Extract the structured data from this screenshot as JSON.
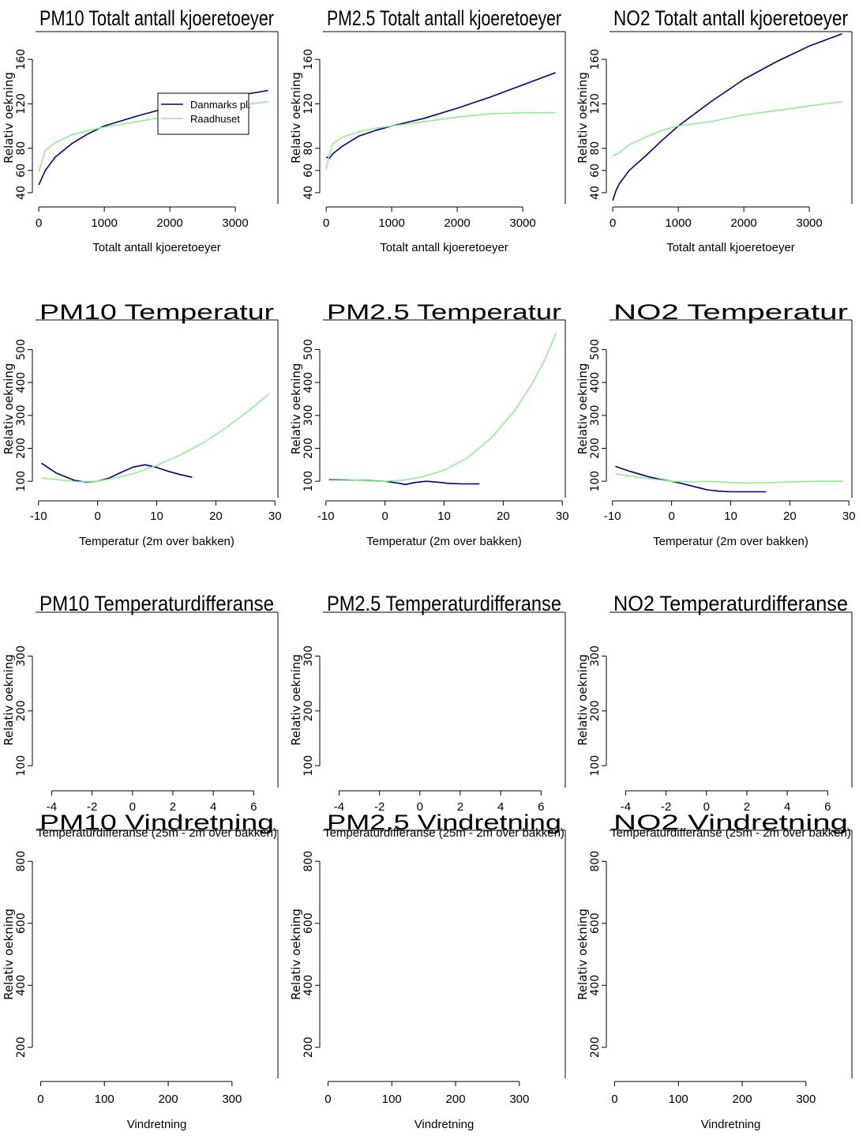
{
  "colors": {
    "danmarks": "#000080",
    "raadhuset": "#90ee90",
    "frame": "#000000"
  },
  "legend": {
    "entries": [
      "Danmarks pl.",
      "Raadhuset"
    ]
  },
  "chart_data": [
    {
      "type": "line",
      "title": "PM10 Totalt antall kjoeretoeyer",
      "xlabel": "Totalt antall kjoeretoeyer",
      "ylabel": "Relativ oekning",
      "xlim": [
        -50,
        3650
      ],
      "ylim": [
        30,
        185
      ],
      "xticks": [
        0,
        1000,
        2000,
        3000
      ],
      "yticks": [
        40,
        60,
        80,
        120,
        160
      ],
      "legend": true,
      "series": [
        {
          "name": "Danmarks pl.",
          "x": [
            0,
            100,
            250,
            500,
            750,
            1000,
            1500,
            2000,
            2500,
            3000,
            3500
          ],
          "y": [
            47,
            60,
            72,
            84,
            93,
            100,
            109,
            117,
            122,
            127,
            132
          ]
        },
        {
          "name": "Raadhuset",
          "x": [
            0,
            100,
            250,
            500,
            750,
            1000,
            1500,
            2000,
            2500,
            3000,
            3500
          ],
          "y": [
            59,
            78,
            85,
            92,
            96,
            99,
            104,
            109,
            113,
            118,
            122
          ]
        }
      ]
    },
    {
      "type": "line",
      "title": "PM2.5 Totalt antall kjoeretoeyer",
      "xlabel": "Totalt antall kjoeretoeyer",
      "ylabel": "Relativ oekning",
      "xlim": [
        -50,
        3650
      ],
      "ylim": [
        30,
        185
      ],
      "xticks": [
        0,
        1000,
        2000,
        3000
      ],
      "yticks": [
        40,
        60,
        80,
        120,
        160
      ],
      "series": [
        {
          "name": "Danmarks pl.",
          "x": [
            0,
            50,
            100,
            250,
            500,
            750,
            1000,
            1500,
            2000,
            2500,
            3000,
            3500
          ],
          "y": [
            72,
            71,
            75,
            82,
            91,
            96,
            100,
            107,
            116,
            126,
            137,
            148
          ]
        },
        {
          "name": "Raadhuset",
          "x": [
            0,
            50,
            100,
            250,
            500,
            750,
            1000,
            1500,
            2000,
            2500,
            3000,
            3500
          ],
          "y": [
            61,
            75,
            84,
            90,
            95,
            98,
            100,
            104,
            108,
            111,
            112,
            112
          ]
        }
      ]
    },
    {
      "type": "line",
      "title": "NO2 Totalt antall kjoeretoeyer",
      "xlabel": "Totalt antall kjoeretoeyer",
      "ylabel": "Relativ oekning",
      "xlim": [
        -50,
        3650
      ],
      "ylim": [
        30,
        185
      ],
      "xticks": [
        0,
        1000,
        2000,
        3000
      ],
      "yticks": [
        40,
        60,
        80,
        120,
        160
      ],
      "series": [
        {
          "name": "Danmarks pl.",
          "x": [
            0,
            50,
            100,
            250,
            500,
            750,
            1000,
            1500,
            2000,
            2500,
            3000,
            3500
          ],
          "y": [
            33,
            42,
            48,
            60,
            73,
            87,
            100,
            122,
            142,
            158,
            172,
            183
          ]
        },
        {
          "name": "Raadhuset",
          "x": [
            0,
            100,
            250,
            500,
            750,
            1000,
            1500,
            2000,
            2500,
            3000,
            3500
          ],
          "y": [
            73,
            76,
            83,
            90,
            96,
            100,
            104,
            110,
            114,
            118,
            122
          ]
        }
      ]
    },
    {
      "type": "line",
      "title": "PM10 Temperatur",
      "xlabel": "Temperatur (2m over bakken)",
      "ylabel": "Relativ oekning",
      "xlim": [
        -10.5,
        30.5
      ],
      "ylim": [
        50,
        590
      ],
      "xticks": [
        -10,
        0,
        10,
        20,
        30
      ],
      "yticks": [
        100,
        200,
        300,
        400,
        500
      ],
      "series": [
        {
          "name": "Danmarks pl.",
          "x": [
            -9.5,
            -7,
            -4,
            -2,
            0,
            2,
            4,
            6,
            8,
            10,
            12,
            14,
            16
          ],
          "y": [
            155,
            125,
            103,
            97,
            100,
            110,
            127,
            143,
            150,
            142,
            130,
            120,
            112
          ]
        },
        {
          "name": "Raadhuset",
          "x": [
            -9.5,
            -6,
            -3,
            0,
            3,
            6,
            10,
            14,
            18,
            22,
            26,
            29
          ],
          "y": [
            110,
            103,
            98,
            100,
            110,
            123,
            148,
            180,
            218,
            266,
            320,
            366
          ]
        }
      ]
    },
    {
      "type": "line",
      "title": "PM2.5 Temperatur",
      "xlabel": "Temperatur (2m over bakken)",
      "ylabel": "Relativ oekning",
      "xlim": [
        -10.5,
        30.5
      ],
      "ylim": [
        50,
        590
      ],
      "xticks": [
        -10,
        0,
        10,
        20,
        30
      ],
      "yticks": [
        100,
        200,
        300,
        400,
        500
      ],
      "series": [
        {
          "name": "Danmarks pl.",
          "x": [
            -9.5,
            -6,
            -3,
            0,
            2,
            3.5,
            5,
            7,
            9,
            11,
            13,
            16
          ],
          "y": [
            105,
            104,
            102,
            100,
            95,
            90,
            96,
            100,
            97,
            93,
            92,
            92
          ]
        },
        {
          "name": "Raadhuset",
          "x": [
            -9.5,
            -6,
            -3,
            0,
            3,
            6,
            10,
            14,
            18,
            22,
            25,
            27,
            29
          ],
          "y": [
            107,
            105,
            101,
            100,
            103,
            112,
            133,
            172,
            232,
            316,
            400,
            468,
            552
          ]
        }
      ]
    },
    {
      "type": "line",
      "title": "NO2 Temperatur",
      "xlabel": "Temperatur (2m over bakken)",
      "ylabel": "Relativ oekning",
      "xlim": [
        -10.5,
        30.5
      ],
      "ylim": [
        50,
        590
      ],
      "xticks": [
        -10,
        0,
        10,
        20,
        30
      ],
      "yticks": [
        100,
        200,
        300,
        400,
        500
      ],
      "series": [
        {
          "name": "Danmarks pl.",
          "x": [
            -9.5,
            -7,
            -4,
            -2,
            0,
            2,
            4,
            6,
            8,
            10,
            13,
            16
          ],
          "y": [
            145,
            130,
            114,
            106,
            100,
            92,
            83,
            74,
            70,
            68,
            68,
            68
          ]
        },
        {
          "name": "Raadhuset",
          "x": [
            -9.5,
            -6,
            -3,
            0,
            3,
            6,
            9,
            12,
            15,
            20,
            25,
            29
          ],
          "y": [
            122,
            113,
            106,
            100,
            98,
            100,
            97,
            95,
            95,
            98,
            100,
            100
          ]
        }
      ]
    },
    {
      "type": "line",
      "title": "PM10 Temperaturdifferanse",
      "xlabel": "Temperaturdifferanse (25m - 2m over bakken)",
      "ylabel": "Relativ oekning",
      "xlim": [
        -4.8,
        7.2
      ],
      "ylim": [
        60,
        380
      ],
      "xticks": [
        -4,
        -2,
        0,
        2,
        4,
        6
      ],
      "yticks": [
        100,
        200,
        300
      ],
      "series": []
    },
    {
      "type": "line",
      "title": "PM2.5 Temperaturdifferanse",
      "xlabel": "Temperaturdifferanse (25m - 2m over bakken)",
      "ylabel": "Relativ oekning",
      "xlim": [
        -4.8,
        7.2
      ],
      "ylim": [
        60,
        380
      ],
      "xticks": [
        -4,
        -2,
        0,
        2,
        4,
        6
      ],
      "yticks": [
        100,
        200,
        300
      ],
      "series": []
    },
    {
      "type": "line",
      "title": "NO2 Temperaturdifferanse",
      "xlabel": "Temperaturdifferanse (25m - 2m over bakken)",
      "ylabel": "Relativ oekning",
      "xlim": [
        -4.8,
        7.2
      ],
      "ylim": [
        60,
        380
      ],
      "xticks": [
        -4,
        -2,
        0,
        2,
        4,
        6
      ],
      "yticks": [
        100,
        200,
        300
      ],
      "series": []
    },
    {
      "type": "line",
      "title": "PM10 Vindretning",
      "xlabel": "Vindretning",
      "ylabel": "Relativ oekning",
      "xlim": [
        -8,
        372
      ],
      "ylim": [
        100,
        900
      ],
      "xticks": [
        0,
        100,
        200,
        300
      ],
      "yticks": [
        200,
        400,
        600,
        800
      ],
      "series": []
    },
    {
      "type": "line",
      "title": "PM2.5 Vindretning",
      "xlabel": "Vindretning",
      "ylabel": "Relativ oekning",
      "xlim": [
        -8,
        372
      ],
      "ylim": [
        100,
        900
      ],
      "xticks": [
        0,
        100,
        200,
        300
      ],
      "yticks": [
        200,
        400,
        600,
        800
      ],
      "series": []
    },
    {
      "type": "line",
      "title": "NO2 Vindretning",
      "xlabel": "Vindretning",
      "ylabel": "Relativ oekning",
      "xlim": [
        -8,
        372
      ],
      "ylim": [
        100,
        900
      ],
      "xticks": [
        0,
        100,
        200,
        300
      ],
      "yticks": [
        200,
        400,
        600,
        800
      ],
      "series": []
    }
  ]
}
